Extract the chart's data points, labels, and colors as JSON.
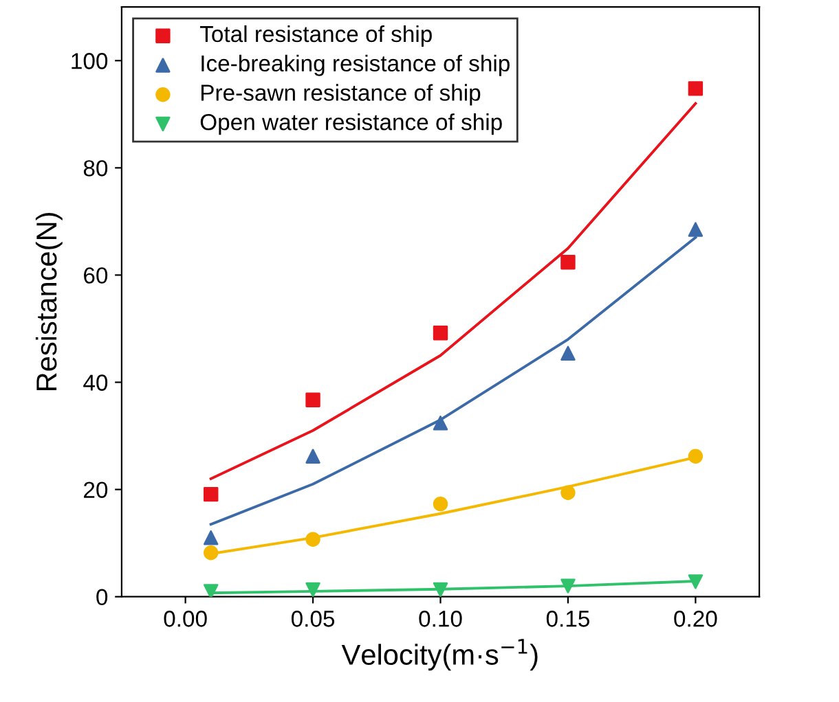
{
  "chart_data": {
    "type": "scatter",
    "xlabel": "Velocity(m·s$^{−1}$)",
    "ylabel": "Resistance(N)",
    "xlim": [
      -0.025,
      0.225
    ],
    "xticks": [
      {
        "value": 0,
        "label": "0.00"
      },
      0.05,
      {
        "value": 0.1,
        "label": "0.10"
      },
      0.15,
      {
        "value": 0.2,
        "label": "0.20"
      }
    ],
    "ylim": [
      0,
      110
    ],
    "yticks": [
      0,
      20,
      40,
      60,
      80,
      100
    ],
    "grid": false,
    "legend": "top left",
    "series": [
      {
        "name": "Total resistance of ship",
        "color": "#e8131b",
        "marker": "square",
        "x": [
          0.01,
          0.05,
          0.1,
          0.15,
          0.2
        ],
        "values": [
          19.1,
          36.7,
          49.2,
          62.4,
          94.8
        ]
      },
      {
        "name": "Ice-breaking resistance of ship",
        "color": "#3c6aa8",
        "marker": "triangle",
        "x": [
          0.01,
          0.05,
          0.1,
          0.15,
          0.2
        ],
        "values": [
          11.0,
          26.2,
          32.4,
          45.4,
          68.5
        ]
      },
      {
        "name": "Pre-sawn resistance of ship",
        "color": "#f5b800",
        "marker": "circle",
        "x": [
          0.01,
          0.05,
          0.1,
          0.15,
          0.2
        ],
        "values": [
          8.2,
          10.7,
          17.3,
          19.4,
          26.2
        ]
      },
      {
        "name": "Open water resistance of ship",
        "color": "#2fc26b",
        "marker": "triangle_down",
        "x": [
          0.01,
          0.05,
          0.1,
          0.15,
          0.2
        ],
        "values": [
          1.0,
          1.3,
          1.3,
          2.0,
          2.8
        ]
      },
      {
        "type": "line",
        "color": "#e8131b",
        "x": [
          0.01,
          0.05,
          0.1,
          0.15,
          0.2
        ],
        "values": [
          22,
          31,
          45,
          65,
          92
        ]
      },
      {
        "type": "line",
        "color": "#3c6aa8",
        "x": [
          0.01,
          0.05,
          0.1,
          0.15,
          0.2
        ],
        "values": [
          13.5,
          21,
          33,
          48,
          67
        ]
      },
      {
        "type": "line",
        "color": "#f5b800",
        "x": [
          0.01,
          0.05,
          0.1,
          0.15,
          0.2
        ],
        "values": [
          8,
          11,
          15.5,
          20.5,
          26
        ]
      },
      {
        "type": "line",
        "color": "#2fc26b",
        "x": [
          0.01,
          0.05,
          0.1,
          0.15,
          0.2
        ],
        "values": [
          0.7,
          1,
          1.4,
          2,
          2.9
        ]
      }
    ]
  }
}
